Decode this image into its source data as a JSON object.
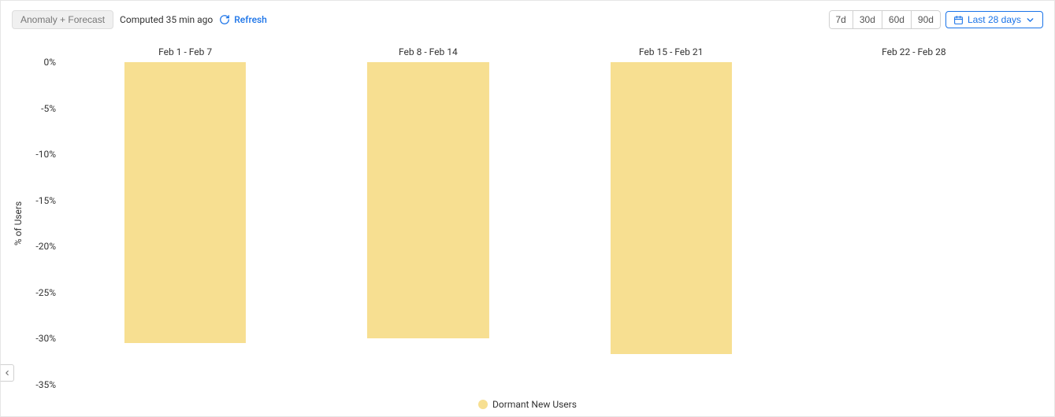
{
  "toolbar": {
    "anomaly_label": "Anomaly + Forecast",
    "computed_label": "Computed 35 min ago",
    "refresh_label": "Refresh",
    "ranges": [
      "7d",
      "30d",
      "60d",
      "90d"
    ],
    "dropdown_label": "Last 28 days"
  },
  "chart": {
    "type": "bar",
    "ylabel": "% of Users",
    "categories": [
      "Feb 1 - Feb 7",
      "Feb 8 - Feb 14",
      "Feb 15 - Feb 21",
      "Feb 22 - Feb 28"
    ],
    "values": [
      -30.5,
      -30.0,
      -31.7,
      0
    ],
    "ylim": [
      -35,
      0
    ],
    "ytick_step": 5,
    "ytick_suffix": "%",
    "bar_color": "#f7df91",
    "bar_width_pct": 50,
    "background_color": "#ffffff",
    "label_color": "#333333"
  },
  "legend": {
    "items": [
      {
        "label": "Dormant New Users",
        "color": "#f7df91"
      }
    ]
  }
}
